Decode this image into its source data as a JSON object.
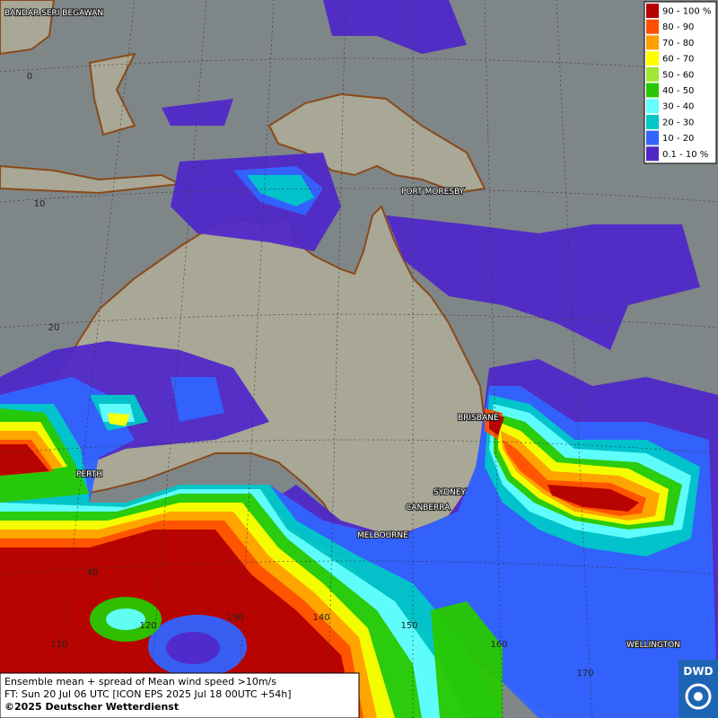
{
  "legend": {
    "items": [
      {
        "label": "90 - 100 %",
        "color": "#b40000"
      },
      {
        "label": "80 - 90",
        "color": "#ff5000"
      },
      {
        "label": "70 - 80",
        "color": "#ffa000"
      },
      {
        "label": "60 - 70",
        "color": "#ffff00"
      },
      {
        "label": "50 - 60",
        "color": "#a0e632"
      },
      {
        "label": "40 - 50",
        "color": "#28c800"
      },
      {
        "label": "30 - 40",
        "color": "#64ffff"
      },
      {
        "label": "20 - 30",
        "color": "#00c8c8"
      },
      {
        "label": "10 - 20",
        "color": "#3264ff"
      },
      {
        "label": "0.1 - 10 %",
        "color": "#5028c8"
      }
    ]
  },
  "cities": [
    {
      "name": "BANDAR SERI BEGAWAN"
    },
    {
      "name": "PORT MORESBY"
    },
    {
      "name": "BRISBANE"
    },
    {
      "name": "PERTH"
    },
    {
      "name": "SYDNEY"
    },
    {
      "name": "CANBERRA"
    },
    {
      "name": "MELBOURNE"
    },
    {
      "name": "WELLINGTON"
    }
  ],
  "grid_labels": [
    "0",
    "10",
    "20",
    "40",
    "110",
    "120",
    "130",
    "140",
    "150",
    "160",
    "170"
  ],
  "footer": {
    "lines": [
      "Ensemble mean + spread of Mean wind speed >10m/s",
      "FT: Sun 20 Jul 06 UTC [ICON EPS 2025 Jul 18 00UTC +54h]",
      "©2025 Deutscher Wetterdienst"
    ]
  },
  "logo": "DWD"
}
